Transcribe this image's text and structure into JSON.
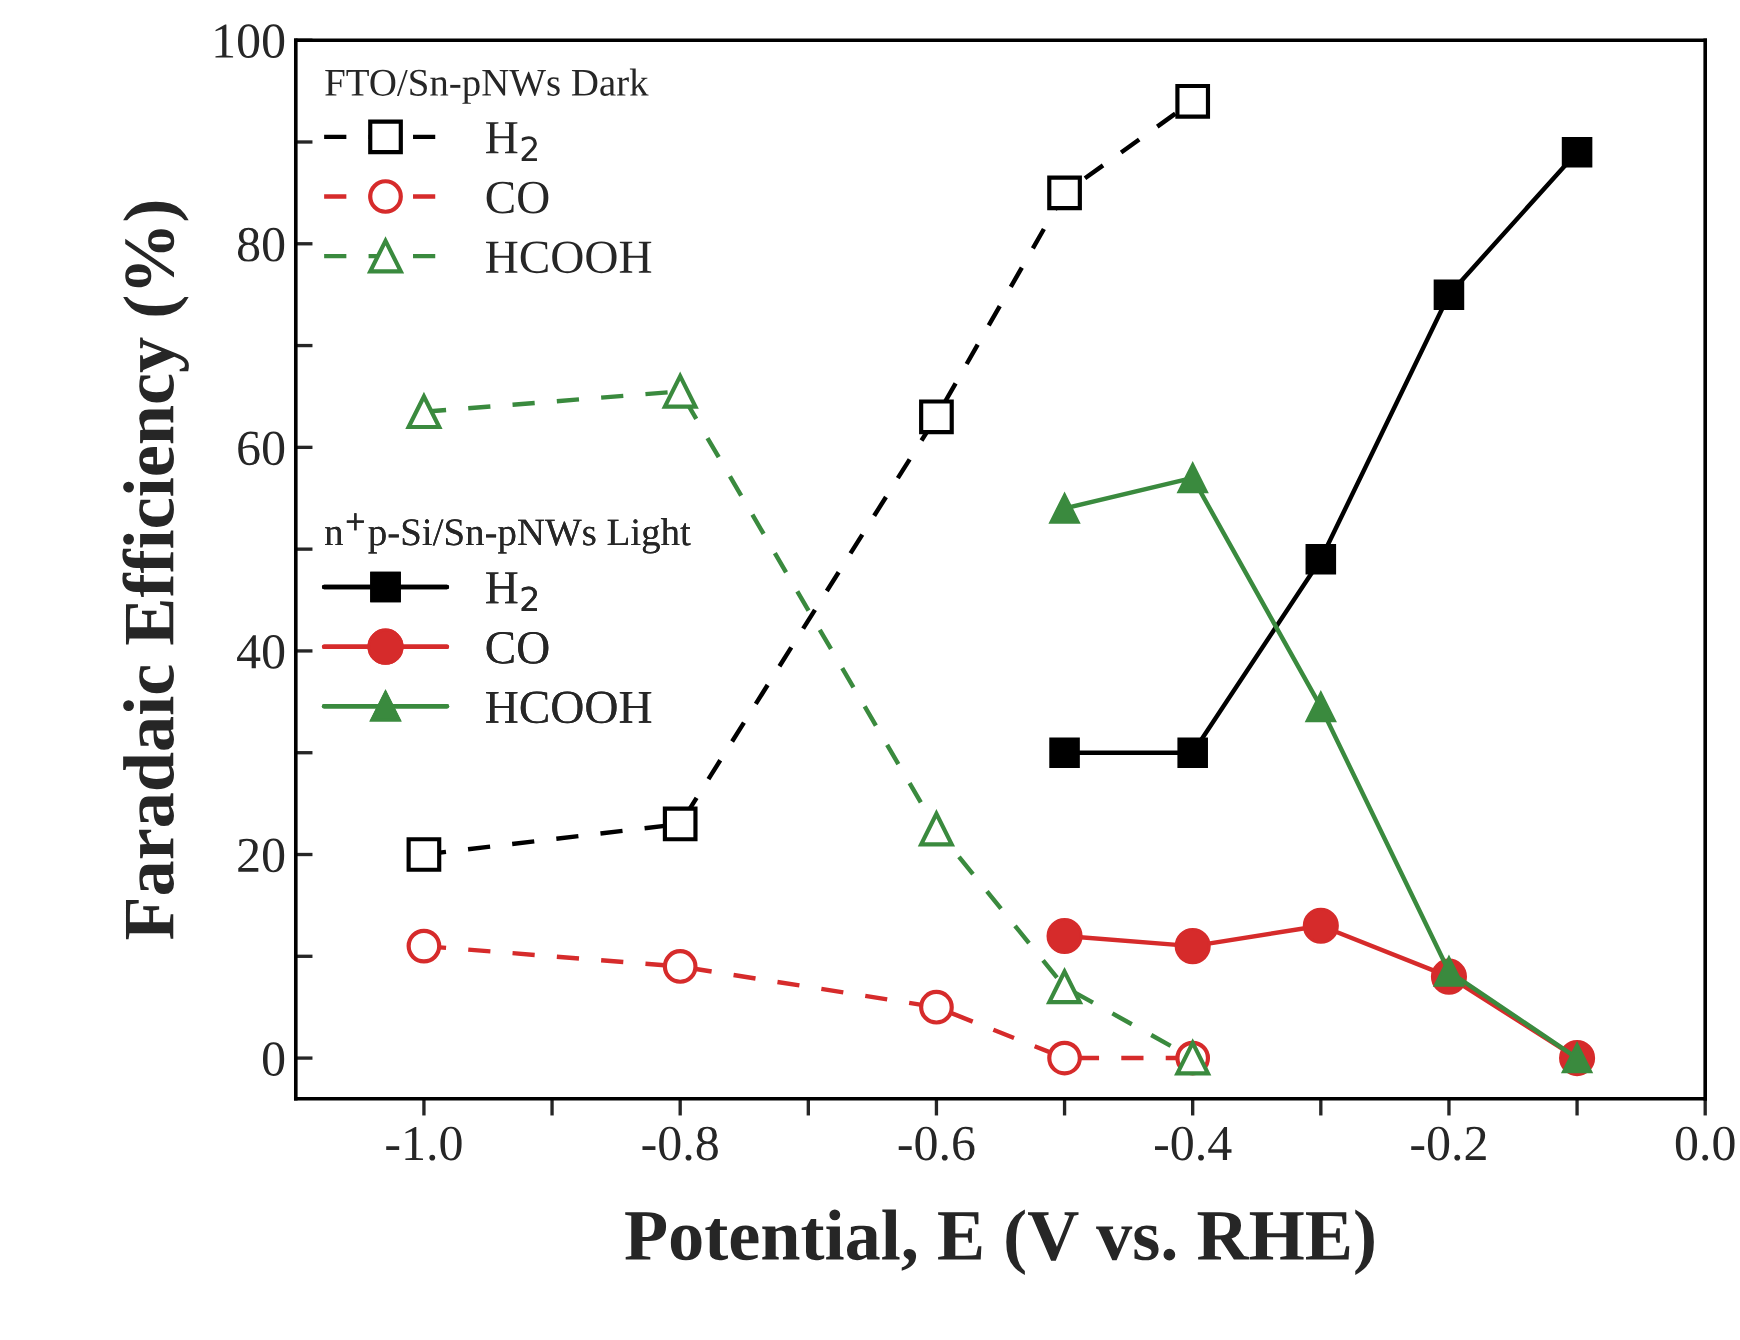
{
  "chart_data": {
    "type": "line",
    "xlabel": "Potential, E (V vs. RHE)",
    "ylabel": "Faradaic Efficiency (%)",
    "xlim": [
      -1.1,
      0.0
    ],
    "xticks": [
      {
        "value": -1.0,
        "label": "-1.0"
      },
      {
        "value": -0.9,
        "label": null
      },
      {
        "value": -0.8,
        "label": "-0.8"
      },
      {
        "value": -0.7,
        "label": null
      },
      {
        "value": -0.6,
        "label": "-0.6"
      },
      {
        "value": -0.5,
        "label": null
      },
      {
        "value": -0.4,
        "label": "-0.4"
      },
      {
        "value": -0.3,
        "label": null
      },
      {
        "value": -0.2,
        "label": "-0.2"
      },
      {
        "value": -0.1,
        "label": null
      },
      {
        "value": 0.0,
        "label": "0.0"
      }
    ],
    "ylim": [
      -4,
      100
    ],
    "yticks": [
      0,
      {
        "value": 10,
        "label": null
      },
      20,
      {
        "value": 30,
        "label": null
      },
      40,
      {
        "value": 50,
        "label": null
      },
      60,
      {
        "value": 70,
        "label": null
      },
      80,
      {
        "value": 90,
        "label": null
      },
      100
    ],
    "grid": false,
    "legend": "top left",
    "annotations": [
      "FTO/Sn-pNWs Dark",
      "n$^{+}$p-Si/Sn-pNWs Light"
    ],
    "series": [
      {
        "name": "H$_{2}$",
        "color": "#000000",
        "marker": "square",
        "line_style": "dashed",
        "x": [
          -1.0,
          -0.8,
          -0.6,
          -0.5,
          -0.4
        ],
        "values": [
          20,
          23,
          63,
          85,
          94
        ]
      },
      {
        "name": "CO",
        "color": "#d62b2b",
        "marker": "circle",
        "line_style": "dashed",
        "x": [
          -1.0,
          -0.8,
          -0.6,
          -0.5,
          -0.4
        ],
        "values": [
          11,
          9,
          5,
          0,
          0
        ]
      },
      {
        "name": "HCOOH",
        "color": "#3a8a3e",
        "marker": "triangle",
        "line_style": "dashed",
        "x": [
          -1.0,
          -0.8,
          -0.6,
          -0.5,
          -0.4
        ],
        "values": [
          63.5,
          65.5,
          22.5,
          7,
          0
        ]
      },
      {
        "name": "H$_{2}$",
        "color": "#000000",
        "marker": "square",
        "line_style": "solid",
        "x": [
          -0.5,
          -0.4,
          -0.3,
          -0.2,
          -0.1
        ],
        "values": [
          30,
          30,
          49,
          75,
          89
        ]
      },
      {
        "name": "CO",
        "color": "#d62b2b",
        "marker": "circle",
        "line_style": "solid",
        "x": [
          -0.5,
          -0.4,
          -0.3,
          -0.2,
          -0.1
        ],
        "values": [
          12,
          11,
          13,
          8,
          0
        ]
      },
      {
        "name": "HCOOH",
        "color": "#3a8a3e",
        "marker": "triangle",
        "line_style": "solid",
        "x": [
          -0.5,
          -0.4,
          -0.3,
          -0.2,
          -0.1
        ],
        "values": [
          54,
          57,
          34.5,
          8.5,
          0
        ]
      }
    ]
  }
}
